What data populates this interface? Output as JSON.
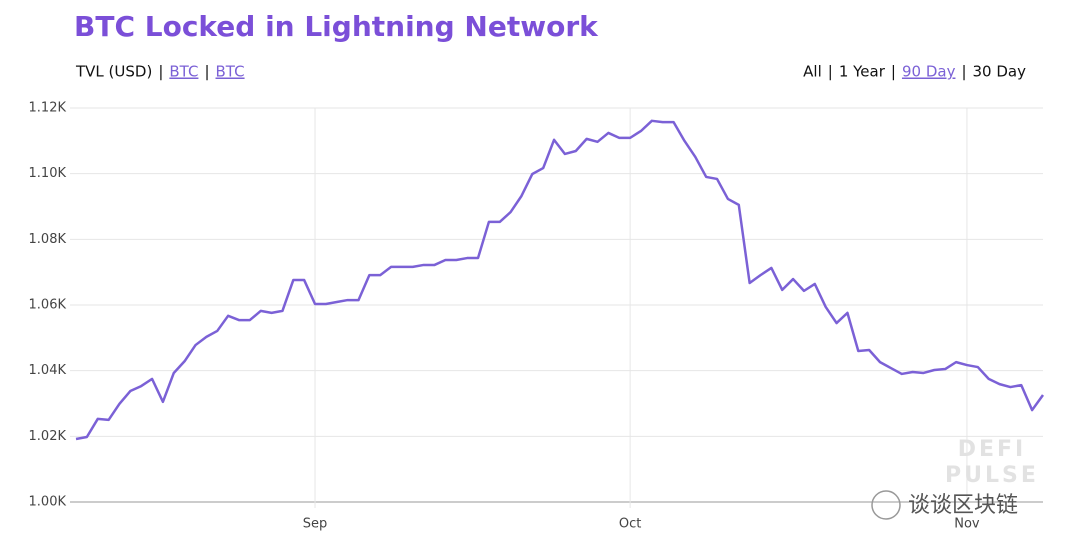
{
  "chart_data": {
    "type": "line",
    "title": "BTC Locked in Lightning Network",
    "unit_label": "TVL (USD)",
    "links": [
      "BTC",
      "BTC"
    ],
    "separator": "|",
    "ranges": [
      {
        "label": "All"
      },
      {
        "label": "1 Year"
      },
      {
        "label": "90 Day",
        "active": true
      },
      {
        "label": "30 Day"
      }
    ],
    "categories": [
      null,
      null,
      null,
      null,
      null,
      null,
      null,
      null,
      null,
      null,
      null,
      null,
      null,
      null,
      null,
      null,
      null,
      null,
      null,
      null,
      null,
      null,
      "Sep",
      null,
      null,
      null,
      null,
      null,
      null,
      null,
      null,
      null,
      null,
      null,
      null,
      null,
      null,
      null,
      null,
      null,
      null,
      null,
      null,
      null,
      null,
      null,
      null,
      null,
      null,
      null,
      null,
      "Oct",
      null,
      null,
      null,
      null,
      null,
      null,
      null,
      null,
      null,
      null,
      null,
      null,
      null,
      null,
      null,
      null,
      null,
      null,
      null,
      null,
      null,
      null,
      null,
      null,
      null,
      null,
      null,
      null,
      null,
      null,
      "Nov",
      null,
      null,
      null,
      null,
      null,
      null,
      null
    ],
    "series": [
      {
        "name": "BTC",
        "color": "#7b61d6",
        "values": [
          1019.2,
          1019.8,
          1025.3,
          1025.0,
          1029.9,
          1033.8,
          1035.3,
          1037.5,
          1030.5,
          1039.3,
          1042.9,
          1047.8,
          1050.3,
          1052.1,
          1056.7,
          1055.4,
          1055.4,
          1058.2,
          1057.6,
          1058.2,
          1067.6,
          1067.6,
          1060.3,
          1060.3,
          1060.9,
          1061.5,
          1061.5,
          1069.1,
          1069.1,
          1071.6,
          1071.6,
          1071.6,
          1072.2,
          1072.2,
          1073.7,
          1073.7,
          1074.3,
          1074.3,
          1085.3,
          1085.3,
          1088.3,
          1093.2,
          1099.9,
          1101.7,
          1110.3,
          1106.0,
          1106.9,
          1110.6,
          1109.7,
          1112.4,
          1110.9,
          1110.9,
          1113.0,
          1116.1,
          1115.7,
          1115.7,
          1110.0,
          1105.1,
          1099.0,
          1098.4,
          1092.3,
          1090.5,
          1066.7,
          1069.1,
          1071.3,
          1064.6,
          1067.9,
          1064.3,
          1066.4,
          1059.4,
          1054.5,
          1057.6,
          1046.0,
          1046.3,
          1042.6,
          1040.8,
          1039.0,
          1039.6,
          1039.3,
          1040.2,
          1040.5,
          1042.6,
          1041.7,
          1041.1,
          1037.5,
          1035.9,
          1035.0,
          1035.6,
          1028.0,
          1032.6
        ]
      }
    ],
    "ylim": [
      1000,
      1120
    ],
    "yticks": [
      {
        "value": 1000,
        "label": "1.00K"
      },
      {
        "value": 1020,
        "label": "1.02K"
      },
      {
        "value": 1040,
        "label": "1.04K"
      },
      {
        "value": 1060,
        "label": "1.06K"
      },
      {
        "value": 1080,
        "label": "1.08K"
      },
      {
        "value": 1100,
        "label": "1.10K"
      },
      {
        "value": 1120,
        "label": "1.12K"
      }
    ],
    "grid": true,
    "watermark": [
      "DEFI",
      "PULSE"
    ],
    "credit": "谈谈区块链"
  }
}
